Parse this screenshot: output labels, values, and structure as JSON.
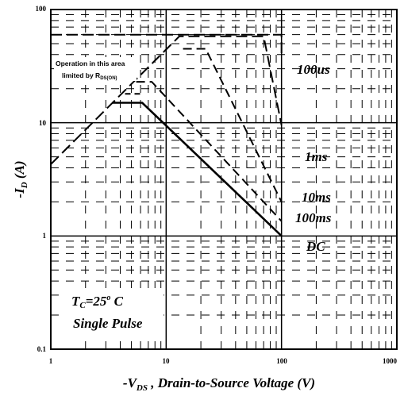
{
  "chart_data": {
    "type": "line",
    "x_scale": "log",
    "y_scale": "log",
    "xlim": [
      1,
      1000
    ],
    "ylim": [
      0.1,
      100
    ],
    "grid": true,
    "x_ticks": [
      "1",
      "10",
      "100",
      "1000"
    ],
    "y_ticks": [
      "0.1",
      "1",
      "10",
      "100"
    ],
    "xlabel": {
      "prefix": "-V",
      "sub": "DS",
      "rest": " , Drain-to-Source Voltage (V)"
    },
    "ylabel": {
      "prefix": "-I",
      "sub": "D",
      "rest": " (A)"
    },
    "annotation": {
      "line1": "Operation in this area",
      "line2": "limited by R",
      "line2_sub": "DS(ON)"
    },
    "conditions": {
      "line1_prefix": "T",
      "line1_sub": "C",
      "line1_mid": "=25",
      "line1_sup": "o",
      "line1_end": " C",
      "line2": "Single Pulse"
    },
    "series": [
      {
        "name": "100us",
        "style": "long-dash",
        "x": [
          1,
          1.5,
          100,
          100
        ],
        "y": [
          60,
          60,
          60,
          40
        ]
      },
      {
        "name": "1ms",
        "style": "long-dash",
        "x": [
          1,
          13,
          70,
          100
        ],
        "y": [
          4.3,
          58,
          58,
          9.5
        ]
      },
      {
        "name": "10ms",
        "style": "dash",
        "x": [
          14,
          22,
          100
        ],
        "y": [
          45,
          45,
          2
        ]
      },
      {
        "name": "100ms",
        "style": "dash",
        "x": [
          5.5,
          7.5,
          100
        ],
        "y": [
          23,
          23,
          1.35
        ]
      },
      {
        "name": "DC",
        "style": "solid",
        "x": [
          3.4,
          6.2,
          100
        ],
        "y": [
          15,
          15,
          1
        ]
      },
      {
        "name": "",
        "style": "short-dash",
        "x": [
          4.4,
          6.2
        ],
        "y": [
          18,
          18
        ]
      }
    ],
    "curve_labels": [
      "100us",
      "1ms",
      "10ms",
      "100ms",
      "DC"
    ]
  }
}
